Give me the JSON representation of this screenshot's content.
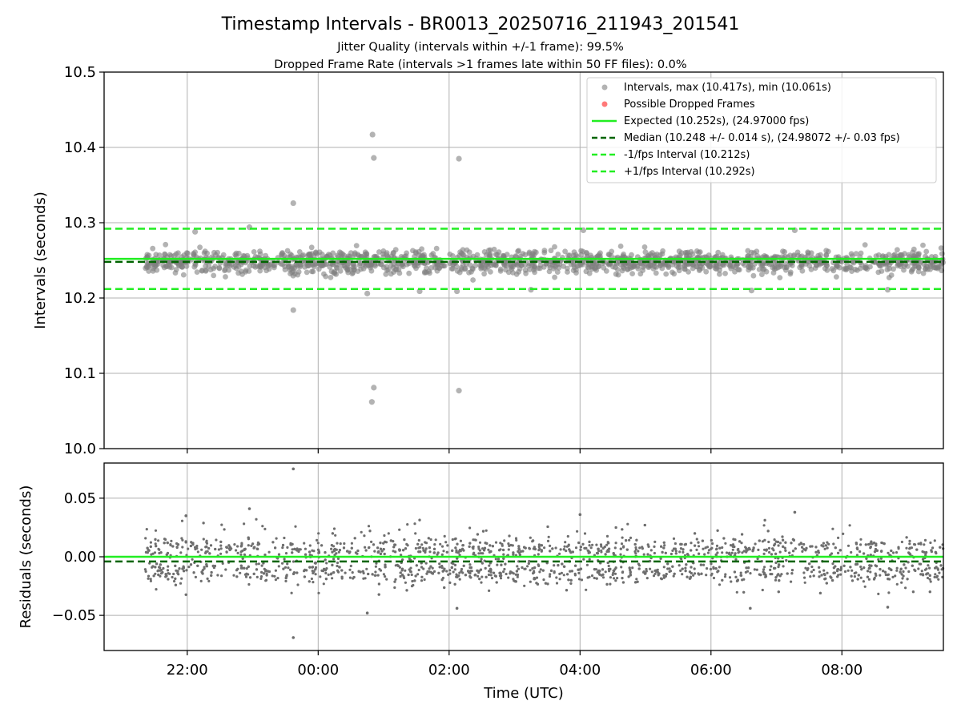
{
  "chart_data": [
    {
      "type": "scatter",
      "title": "Timestamp Intervals - BR0013_20250716_211943_201541",
      "subtitle_lines": [
        "Jitter Quality (intervals within +/-1 frame): 99.5%",
        "Dropped Frame Rate (intervals >1 frames late within 50 FF files): 0.0%"
      ],
      "ylabel": "Intervals (seconds)",
      "ylim": [
        10.0,
        10.5
      ],
      "yticks": [
        "10.0",
        "10.1",
        "10.2",
        "10.3",
        "10.4",
        "10.5"
      ],
      "x_unit": "hours",
      "xlim": [
        20.73,
        33.55
      ],
      "grid": true,
      "legend_placement": "top-right",
      "colors": {
        "intervals": "#808080",
        "dropped": "#ff4040",
        "expected": "#22ee22",
        "median": "#006400",
        "bounds": "#22ee22"
      },
      "legend": [
        "Intervals, max (10.417s), min (10.061s)",
        "Possible Dropped Frames",
        "Expected (10.252s), (24.97000 fps)",
        "Median (10.248 +/- 0.014 s), (24.98072 +/- 0.03 fps)",
        "-1/fps Interval (10.212s)",
        "+1/fps Interval (10.292s)"
      ],
      "lines": {
        "expected": 10.252,
        "median": 10.248,
        "minus_one_fps": 10.212,
        "plus_one_fps": 10.292
      },
      "band": {
        "x_start": 21.35,
        "x_end": 33.55,
        "center": 10.248,
        "spread": 0.014
      },
      "outliers": [
        {
          "x": 23.62,
          "y": 10.326
        },
        {
          "x": 23.62,
          "y": 10.184
        },
        {
          "x": 24.83,
          "y": 10.417
        },
        {
          "x": 24.85,
          "y": 10.386
        },
        {
          "x": 24.85,
          "y": 10.081
        },
        {
          "x": 24.82,
          "y": 10.062
        },
        {
          "x": 26.15,
          "y": 10.385
        },
        {
          "x": 26.15,
          "y": 10.077
        },
        {
          "x": 22.12,
          "y": 10.288
        },
        {
          "x": 22.95,
          "y": 10.294
        },
        {
          "x": 24.75,
          "y": 10.206
        },
        {
          "x": 25.55,
          "y": 10.209
        },
        {
          "x": 26.12,
          "y": 10.209
        },
        {
          "x": 27.25,
          "y": 10.211
        },
        {
          "x": 28.05,
          "y": 10.29
        },
        {
          "x": 30.62,
          "y": 10.21
        },
        {
          "x": 31.28,
          "y": 10.29
        },
        {
          "x": 32.7,
          "y": 10.211
        }
      ]
    },
    {
      "type": "scatter",
      "ylabel": "Residuals (seconds)",
      "xlabel": "Time (UTC)",
      "ylim": [
        -0.08,
        0.08
      ],
      "yticks": [
        "−0.05",
        "0.00",
        "0.05"
      ],
      "xticks": [
        "22:00",
        "00:00",
        "02:00",
        "04:00",
        "06:00",
        "08:00"
      ],
      "xtick_hours": [
        22,
        24,
        26,
        28,
        30,
        32
      ],
      "x_unit": "hours",
      "xlim": [
        20.73,
        33.55
      ],
      "grid": true,
      "lines": {
        "expected": 0.0,
        "median": -0.004
      },
      "band": {
        "x_start": 21.35,
        "x_end": 33.55,
        "upper_center": 0.007,
        "lower_center": -0.013,
        "spread": 0.014
      },
      "outliers": [
        {
          "x": 23.62,
          "y": 0.075
        },
        {
          "x": 23.62,
          "y": -0.069
        },
        {
          "x": 22.95,
          "y": 0.041
        },
        {
          "x": 21.98,
          "y": 0.035
        },
        {
          "x": 28.0,
          "y": 0.036
        },
        {
          "x": 31.28,
          "y": 0.038
        },
        {
          "x": 24.75,
          "y": -0.048
        },
        {
          "x": 26.12,
          "y": -0.044
        },
        {
          "x": 30.6,
          "y": -0.044
        },
        {
          "x": 32.7,
          "y": -0.043
        }
      ]
    }
  ]
}
